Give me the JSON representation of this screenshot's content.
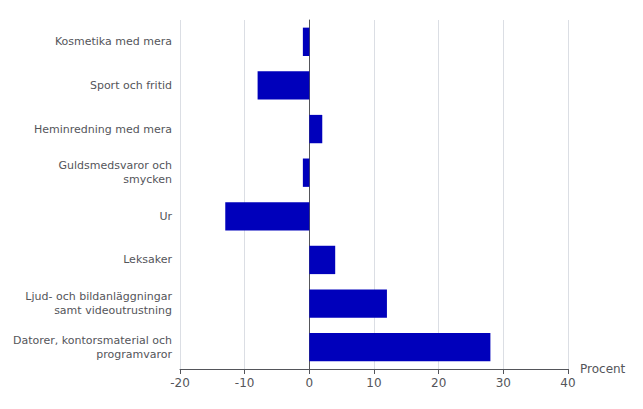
{
  "chart_data": {
    "type": "bar",
    "orientation": "horizontal",
    "categories": [
      "Datorer, kontorsmaterial och\nprogramvaror",
      "Ljud- och bildanläggningar\nsamt videoutrustning",
      "Leksaker",
      "Ur",
      "Guldsmedsvaror och\nsmycken",
      "Heminredning med mera",
      "Sport och fritid",
      "Kosmetika med mera"
    ],
    "values": [
      28,
      12,
      4,
      -13,
      -1,
      2,
      -8,
      -1
    ],
    "color": "#0000BB",
    "xlabel": "Procent",
    "xlim": [
      -20,
      40
    ],
    "xticks": [
      -20,
      -10,
      0,
      10,
      20,
      30,
      40
    ],
    "grid": true
  }
}
